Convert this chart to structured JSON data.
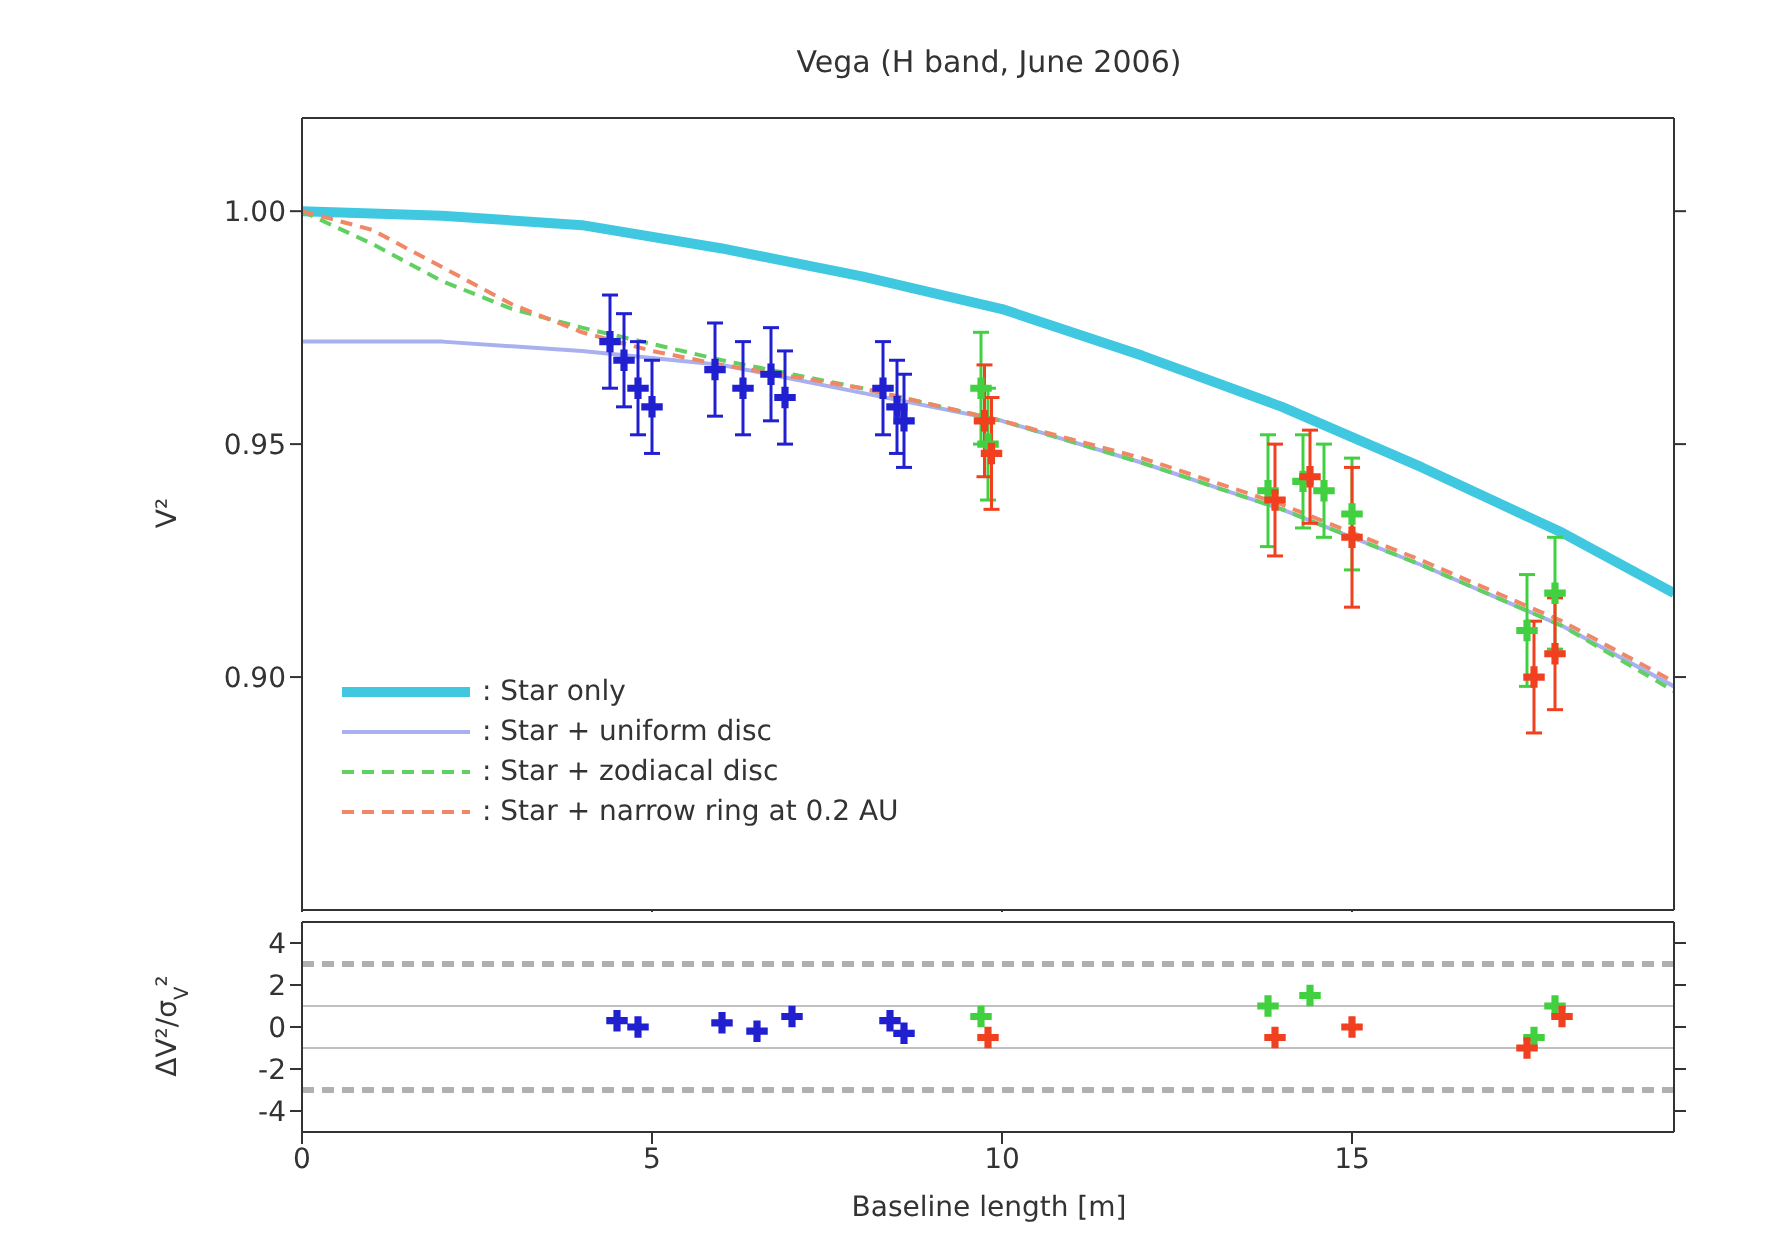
{
  "chart_data": [
    {
      "type": "line",
      "title": "Vega (H band, June 2006)",
      "ylabel": "V²",
      "tick_labels": "y",
      "xlim": [
        0,
        19.6
      ],
      "xticks": [
        0,
        5,
        10,
        15
      ],
      "ylim": [
        0.85,
        1.02
      ],
      "yticks": [
        {
          "value": 0.9,
          "label": "0.90"
        },
        {
          "value": 0.95,
          "label": "0.95"
        },
        {
          "value": 1,
          "label": "1.00"
        }
      ],
      "legend": "bottom left",
      "marker": "none",
      "series": [
        {
          "name": ": Star only",
          "color": "#40c8e0",
          "line_style": "solid",
          "x": [
            0,
            2,
            4,
            6,
            8,
            10,
            12,
            14,
            16,
            18,
            19.6
          ],
          "values": [
            1.0,
            0.999,
            0.997,
            0.992,
            0.986,
            0.979,
            0.969,
            0.958,
            0.945,
            0.931,
            0.918
          ]
        },
        {
          "name": ": Star + uniform disc",
          "color": "#a8b0f0",
          "line_style": "solid",
          "x": [
            0,
            2,
            4,
            6,
            8,
            10,
            12,
            14,
            16,
            18,
            19.6
          ],
          "values": [
            0.972,
            0.972,
            0.97,
            0.967,
            0.961,
            0.955,
            0.946,
            0.936,
            0.924,
            0.911,
            0.898
          ]
        },
        {
          "name": ": Star + zodiacal disc",
          "color": "#60d060",
          "line_style": "dashed",
          "x": [
            0,
            1,
            2,
            3,
            4,
            6,
            8,
            10,
            12,
            14,
            16,
            18,
            19.6
          ],
          "values": [
            1.0,
            0.993,
            0.985,
            0.979,
            0.975,
            0.968,
            0.962,
            0.955,
            0.946,
            0.936,
            0.924,
            0.911,
            0.897
          ]
        },
        {
          "name": ": Star + narrow ring at 0.2 AU",
          "color": "#f08868",
          "line_style": "dashed",
          "x": [
            0,
            1,
            2,
            3,
            4,
            5,
            6,
            8,
            10,
            12,
            14,
            16,
            18,
            19.6
          ],
          "values": [
            1.0,
            0.996,
            0.988,
            0.98,
            0.974,
            0.97,
            0.967,
            0.962,
            0.955,
            0.947,
            0.937,
            0.925,
            0.912,
            0.899
          ]
        },
        {
          "type": "scatter",
          "color": "#2020d0",
          "marker": "cross",
          "x": [
            4.4,
            4.6,
            4.8,
            5.0,
            5.9,
            6.3,
            6.7,
            6.9,
            8.3,
            8.5,
            8.6
          ],
          "values": [
            0.972,
            0.968,
            0.962,
            0.958,
            0.966,
            0.962,
            0.965,
            0.96,
            0.962,
            0.958,
            0.955
          ],
          "errors": [
            0.01,
            0.01,
            0.01,
            0.01,
            0.01,
            0.01,
            0.01,
            0.01,
            0.01,
            0.01,
            0.01
          ]
        },
        {
          "type": "scatter",
          "color": "#40d040",
          "marker": "cross",
          "x": [
            9.7,
            9.8,
            13.8,
            14.3,
            14.6,
            15.0,
            17.5,
            17.9
          ],
          "values": [
            0.962,
            0.95,
            0.94,
            0.942,
            0.94,
            0.935,
            0.91,
            0.918
          ],
          "errors": [
            0.012,
            0.012,
            0.012,
            0.01,
            0.01,
            0.012,
            0.012,
            0.012
          ]
        },
        {
          "type": "scatter",
          "color": "#f04020",
          "marker": "cross",
          "x": [
            9.75,
            9.85,
            13.9,
            14.4,
            15.0,
            17.6,
            17.9
          ],
          "values": [
            0.955,
            0.948,
            0.938,
            0.943,
            0.93,
            0.9,
            0.905
          ],
          "errors": [
            0.012,
            0.012,
            0.012,
            0.01,
            0.015,
            0.012,
            0.012
          ]
        }
      ]
    },
    {
      "type": "scatter",
      "xlabel": "Baseline length [m]",
      "ylabel": "ΔV²/σ$_{V}$²",
      "xlim": [
        0,
        19.6
      ],
      "xticks": [
        0,
        5,
        10,
        15
      ],
      "ylim": [
        -5,
        5
      ],
      "yticks": [
        -4,
        -2,
        0,
        2,
        4
      ],
      "marker": "cross",
      "ref_lines": [
        {
          "axis": "y",
          "value": 3,
          "color": "#b0b0b0",
          "line_style": "dashed"
        },
        {
          "axis": "y",
          "value": 1,
          "color": "#c0c0c0",
          "line_style": "solid"
        },
        {
          "axis": "y",
          "value": -1,
          "color": "#c0c0c0",
          "line_style": "solid"
        },
        {
          "axis": "y",
          "value": -3,
          "color": "#b0b0b0",
          "line_style": "dashed"
        }
      ],
      "series": [
        {
          "color": "#2020d0",
          "x": [
            4.5,
            4.8,
            6.0,
            6.5,
            7.0,
            8.4,
            8.6
          ],
          "values": [
            0.3,
            0,
            0.2,
            -0.2,
            0.5,
            0.3,
            -0.3
          ]
        },
        {
          "color": "#40d040",
          "x": [
            9.7,
            13.8,
            14.4,
            17.6,
            17.9
          ],
          "values": [
            0.5,
            1,
            1.5,
            -0.5,
            1
          ]
        },
        {
          "color": "#f04020",
          "x": [
            9.8,
            13.9,
            15.0,
            17.5,
            18.0
          ],
          "values": [
            -0.5,
            -0.5,
            0,
            -1,
            0.5
          ]
        }
      ]
    }
  ]
}
